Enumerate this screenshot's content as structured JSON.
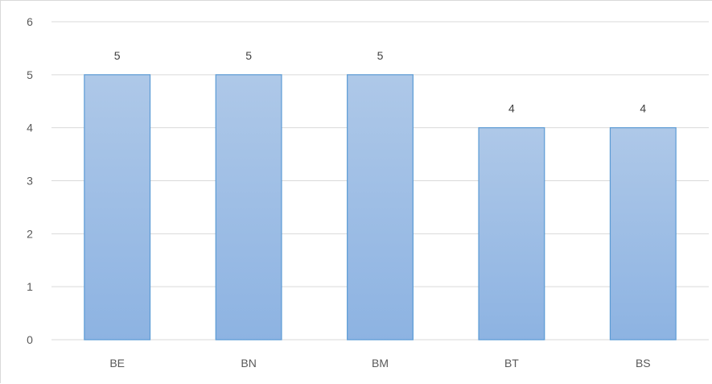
{
  "chart_data": {
    "type": "bar",
    "title": "",
    "xlabel": "",
    "ylabel": "",
    "categories": [
      "BE",
      "BN",
      "BM",
      "BT",
      "BS"
    ],
    "values": [
      5,
      5,
      5,
      4,
      4
    ],
    "data_labels": [
      "5",
      "5",
      "5",
      "4",
      "4"
    ],
    "ylim": [
      0,
      6
    ],
    "yticks": [
      0,
      1,
      2,
      3,
      4,
      5,
      6
    ],
    "grid": true,
    "legend": "none",
    "colors": {
      "bar_top": "#aec8e8",
      "bar_bottom": "#8db3e2",
      "bar_border": "#5b9bd5",
      "grid": "#d9d9d9",
      "tick_text": "#595959"
    }
  }
}
